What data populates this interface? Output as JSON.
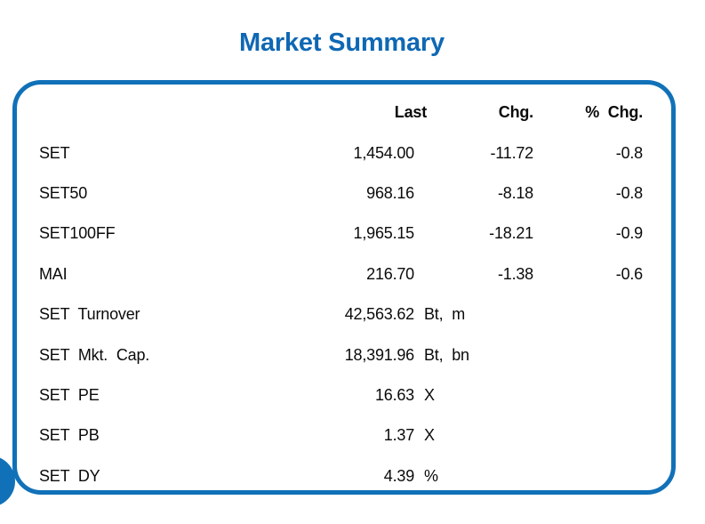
{
  "title": "Market Summary",
  "colors": {
    "accent_blue": "#1171b8",
    "title_blue": "#0f68b4",
    "text": "#0a0a0a"
  },
  "table": {
    "headers": {
      "last": "Last",
      "chg": "Chg.",
      "pchg": "% Chg."
    },
    "rows": [
      {
        "label": "SET",
        "last": "1,454.00",
        "unit": "",
        "chg": "-11.72",
        "pchg": "-0.8"
      },
      {
        "label": "SET50",
        "last": "968.16",
        "unit": "",
        "chg": "-8.18",
        "pchg": "-0.8"
      },
      {
        "label": "SET100FF",
        "last": "1,965.15",
        "unit": "",
        "chg": "-18.21",
        "pchg": "-0.9"
      },
      {
        "label": "MAI",
        "last": "216.70",
        "unit": "",
        "chg": "-1.38",
        "pchg": "-0.6"
      },
      {
        "label": "SET Turnover",
        "last": "42,563.62",
        "unit": "Bt, m",
        "chg": "",
        "pchg": ""
      },
      {
        "label": "SET Mkt. Cap.",
        "last": "18,391.96",
        "unit": "Bt, bn",
        "chg": "",
        "pchg": ""
      },
      {
        "label": "SET PE",
        "last": "16.63",
        "unit": "X",
        "chg": "",
        "pchg": ""
      },
      {
        "label": "SET PB",
        "last": "1.37",
        "unit": "X",
        "chg": "",
        "pchg": ""
      },
      {
        "label": "SET DY",
        "last": "4.39",
        "unit": "%",
        "chg": "",
        "pchg": ""
      }
    ]
  }
}
